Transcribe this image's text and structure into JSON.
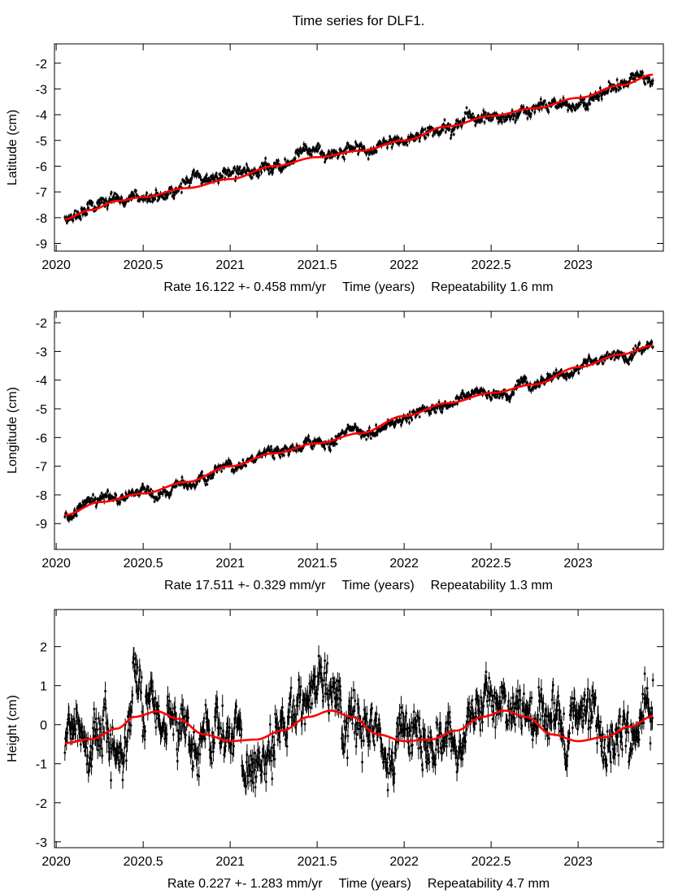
{
  "figure_title": "Time series for DLF1.",
  "colors": {
    "points": "#000000",
    "fit": "#ff0000",
    "frame": "#000000"
  },
  "chart_data": [
    {
      "type": "scatter",
      "name": "latitude",
      "title": "Time series for DLF1.",
      "ylabel": "Latitude (cm)",
      "xlabel": "Rate 16.122 +- 0.458 mm/yr    Time (years)    Repeatability 1.6 mm",
      "xlabel_parts": {
        "rate": "Rate 16.122 +- 0.458 mm/yr",
        "axis": "Time (years)",
        "repeatability": "Repeatability 1.6 mm"
      },
      "rate_mm_yr": 16.122,
      "rate_err_mm_yr": 0.458,
      "repeatability_mm": 1.6,
      "xlim": [
        2019.99,
        2023.49
      ],
      "ylim": [
        -9.3,
        -1.25
      ],
      "xticks": [
        2020,
        2020.5,
        2021,
        2021.5,
        2022,
        2022.5,
        2023
      ],
      "xtick_labels": [
        "2020",
        "2020.5",
        "2021",
        "2021.5",
        "2022",
        "2022.5",
        "2023"
      ],
      "yticks": [
        -9,
        -8,
        -7,
        -6,
        -5,
        -4,
        -3,
        -2
      ],
      "ytick_labels": [
        "-9",
        "-8",
        "-7",
        "-6",
        "-5",
        "-4",
        "-3",
        "-2"
      ],
      "grid": false,
      "series": [
        {
          "name": "observations",
          "style": "points-with-errorbars",
          "t_start": 2020.05,
          "t_end": 2023.43,
          "noise_cm": 0.16,
          "error_cm": 0.08
        },
        {
          "name": "fit",
          "style": "line",
          "x": [
            2020.05,
            2020.2,
            2020.35,
            2020.5,
            2020.75,
            2021.0,
            2021.25,
            2021.5,
            2021.75,
            2022.0,
            2022.25,
            2022.5,
            2022.75,
            2023.0,
            2023.25,
            2023.43
          ],
          "y": [
            -8.05,
            -7.7,
            -7.35,
            -7.2,
            -6.85,
            -6.5,
            -6.0,
            -5.65,
            -5.4,
            -5.0,
            -4.45,
            -4.05,
            -3.75,
            -3.35,
            -2.85,
            -2.45
          ]
        }
      ]
    },
    {
      "type": "scatter",
      "name": "longitude",
      "ylabel": "Longitude (cm)",
      "xlabel": "Rate 17.511 +- 0.329 mm/yr    Time (years)    Repeatability 1.3 mm",
      "xlabel_parts": {
        "rate": "Rate 17.511 +- 0.329 mm/yr",
        "axis": "Time (years)",
        "repeatability": "Repeatability 1.3 mm"
      },
      "rate_mm_yr": 17.511,
      "rate_err_mm_yr": 0.329,
      "repeatability_mm": 1.3,
      "xlim": [
        2019.99,
        2023.49
      ],
      "ylim": [
        -9.9,
        -1.6
      ],
      "xticks": [
        2020,
        2020.5,
        2021,
        2021.5,
        2022,
        2022.5,
        2023
      ],
      "xtick_labels": [
        "2020",
        "2020.5",
        "2021",
        "2021.5",
        "2022",
        "2022.5",
        "2023"
      ],
      "yticks": [
        -9,
        -8,
        -7,
        -6,
        -5,
        -4,
        -3,
        -2
      ],
      "ytick_labels": [
        "-9",
        "-8",
        "-7",
        "-6",
        "-5",
        "-4",
        "-3",
        "-2"
      ],
      "grid": false,
      "series": [
        {
          "name": "observations",
          "style": "points-with-errorbars",
          "t_start": 2020.05,
          "t_end": 2023.43,
          "noise_cm": 0.12,
          "error_cm": 0.07
        },
        {
          "name": "fit",
          "style": "line",
          "x": [
            2020.05,
            2020.25,
            2020.5,
            2020.75,
            2021.0,
            2021.25,
            2021.5,
            2021.75,
            2022.0,
            2022.25,
            2022.5,
            2022.75,
            2023.0,
            2023.25,
            2023.43
          ],
          "y": [
            -8.7,
            -8.25,
            -7.95,
            -7.55,
            -7.0,
            -6.55,
            -6.2,
            -5.85,
            -5.25,
            -4.8,
            -4.45,
            -4.15,
            -3.55,
            -3.1,
            -2.8
          ]
        }
      ]
    },
    {
      "type": "scatter",
      "name": "height",
      "ylabel": "Height (cm)",
      "xlabel": "Rate 0.227 +- 1.283 mm/yr    Time (years)    Repeatability 4.7 mm",
      "xlabel_parts": {
        "rate": "Rate 0.227 +- 1.283 mm/yr",
        "axis": "Time (years)",
        "repeatability": "Repeatability 4.7 mm"
      },
      "rate_mm_yr": 0.227,
      "rate_err_mm_yr": 1.283,
      "repeatability_mm": 4.7,
      "xlim": [
        2019.99,
        2023.49
      ],
      "ylim": [
        -3.15,
        2.95
      ],
      "xticks": [
        2020,
        2020.5,
        2021,
        2021.5,
        2022,
        2022.5,
        2023
      ],
      "xtick_labels": [
        "2020",
        "2020.5",
        "2021",
        "2021.5",
        "2022",
        "2022.5",
        "2023"
      ],
      "yticks": [
        -3,
        -2,
        -1,
        0,
        1,
        2
      ],
      "ytick_labels": [
        "-3",
        "-2",
        "-1",
        "0",
        "1",
        "2"
      ],
      "grid": false,
      "series": [
        {
          "name": "observations",
          "style": "points-with-errorbars",
          "t_start": 2020.05,
          "t_end": 2023.43,
          "noise_cm": 0.45,
          "error_cm": 0.2
        },
        {
          "name": "fit",
          "style": "line",
          "x": [
            2020.05,
            2020.2,
            2020.35,
            2020.45,
            2020.58,
            2020.7,
            2020.85,
            2021.0,
            2021.15,
            2021.3,
            2021.45,
            2021.58,
            2021.7,
            2021.85,
            2022.0,
            2022.15,
            2022.3,
            2022.45,
            2022.58,
            2022.7,
            2022.85,
            2023.0,
            2023.15,
            2023.3,
            2023.43
          ],
          "y": [
            -0.47,
            -0.37,
            -0.1,
            0.2,
            0.34,
            0.15,
            -0.25,
            -0.42,
            -0.38,
            -0.15,
            0.2,
            0.36,
            0.2,
            -0.25,
            -0.42,
            -0.38,
            -0.15,
            0.2,
            0.36,
            0.2,
            -0.25,
            -0.42,
            -0.32,
            -0.05,
            0.22
          ]
        }
      ]
    }
  ]
}
